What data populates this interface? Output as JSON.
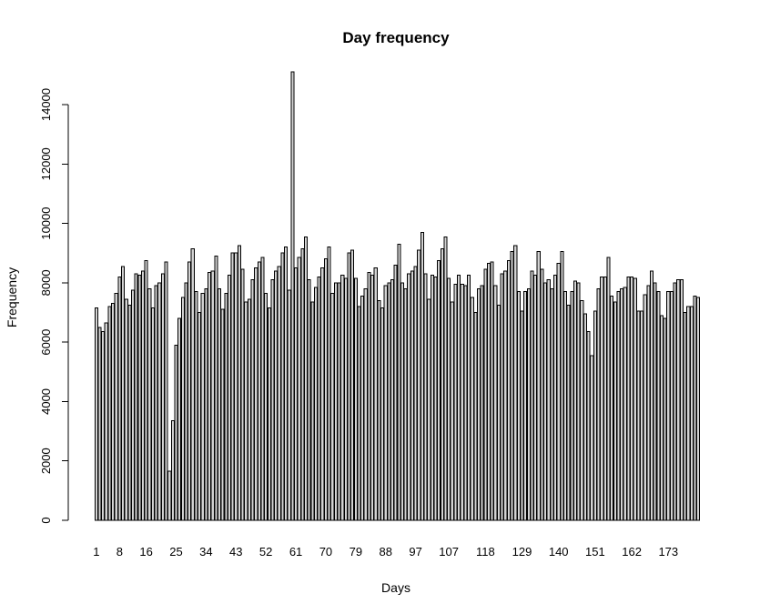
{
  "chart_data": {
    "type": "bar",
    "title": "Day frequency",
    "xlabel": "Days",
    "ylabel": "Frequency",
    "ylim": [
      0,
      15200
    ],
    "yticks": [
      0,
      2000,
      4000,
      6000,
      8000,
      10000,
      12000,
      14000
    ],
    "x_tick_labels": [
      "1",
      "8",
      "16",
      "25",
      "34",
      "43",
      "52",
      "61",
      "70",
      "79",
      "88",
      "97",
      "107",
      "118",
      "129",
      "140",
      "151",
      "162",
      "173"
    ],
    "x_tick_bar_index": [
      1,
      8,
      16,
      25,
      34,
      43,
      52,
      61,
      70,
      79,
      88,
      97,
      107,
      118,
      129,
      140,
      151,
      162,
      173
    ],
    "bar_fill": "#d3d3d3",
    "bar_stroke": "#000000",
    "grid": false,
    "legend": "none",
    "values": [
      7150,
      6500,
      6350,
      6650,
      7200,
      7300,
      7650,
      8200,
      8550,
      7450,
      7250,
      7750,
      8300,
      8250,
      8400,
      8750,
      7800,
      7150,
      7900,
      8000,
      8300,
      8700,
      1650,
      3350,
      5900,
      6800,
      7500,
      8000,
      8700,
      9150,
      7700,
      7000,
      7650,
      7800,
      8350,
      8400,
      8900,
      7800,
      7100,
      7650,
      8250,
      9000,
      9000,
      9250,
      8450,
      7350,
      7450,
      8100,
      8500,
      8700,
      8850,
      7650,
      7150,
      8100,
      8400,
      8550,
      9000,
      9200,
      7750,
      15100,
      8500,
      8850,
      9150,
      9550,
      8100,
      7350,
      7850,
      8200,
      8500,
      8800,
      9200,
      7650,
      8000,
      8000,
      8250,
      8150,
      9000,
      9100,
      8150,
      7200,
      7550,
      7800,
      8350,
      8250,
      8500,
      7400,
      7150,
      7900,
      8000,
      8100,
      8600,
      9300,
      8000,
      7800,
      8300,
      8400,
      8550,
      9100,
      9700,
      8300,
      7450,
      8250,
      8200,
      8750,
      9150,
      9550,
      8150,
      7350,
      7950,
      8250,
      7950,
      7900,
      8250,
      7500,
      7000,
      7800,
      7900,
      8450,
      8650,
      8700,
      7900,
      7250,
      8300,
      8400,
      8750,
      9050,
      9250,
      7700,
      7050,
      7700,
      7800,
      8400,
      8250,
      9050,
      8450,
      8000,
      8100,
      7800,
      8250,
      8650,
      9050,
      7700,
      7250,
      7700,
      8050,
      8000,
      7400,
      6950,
      6350,
      5550,
      7050,
      7800,
      8200,
      8200,
      8850,
      7550,
      7350,
      7700,
      7800,
      7850,
      8200,
      8200,
      8150,
      7050,
      7050,
      7600,
      7900,
      8400,
      8000,
      7700,
      6900,
      6800,
      7700,
      7700,
      8000,
      8100,
      8100,
      7000,
      7200,
      7200,
      7550,
      7500
    ]
  }
}
